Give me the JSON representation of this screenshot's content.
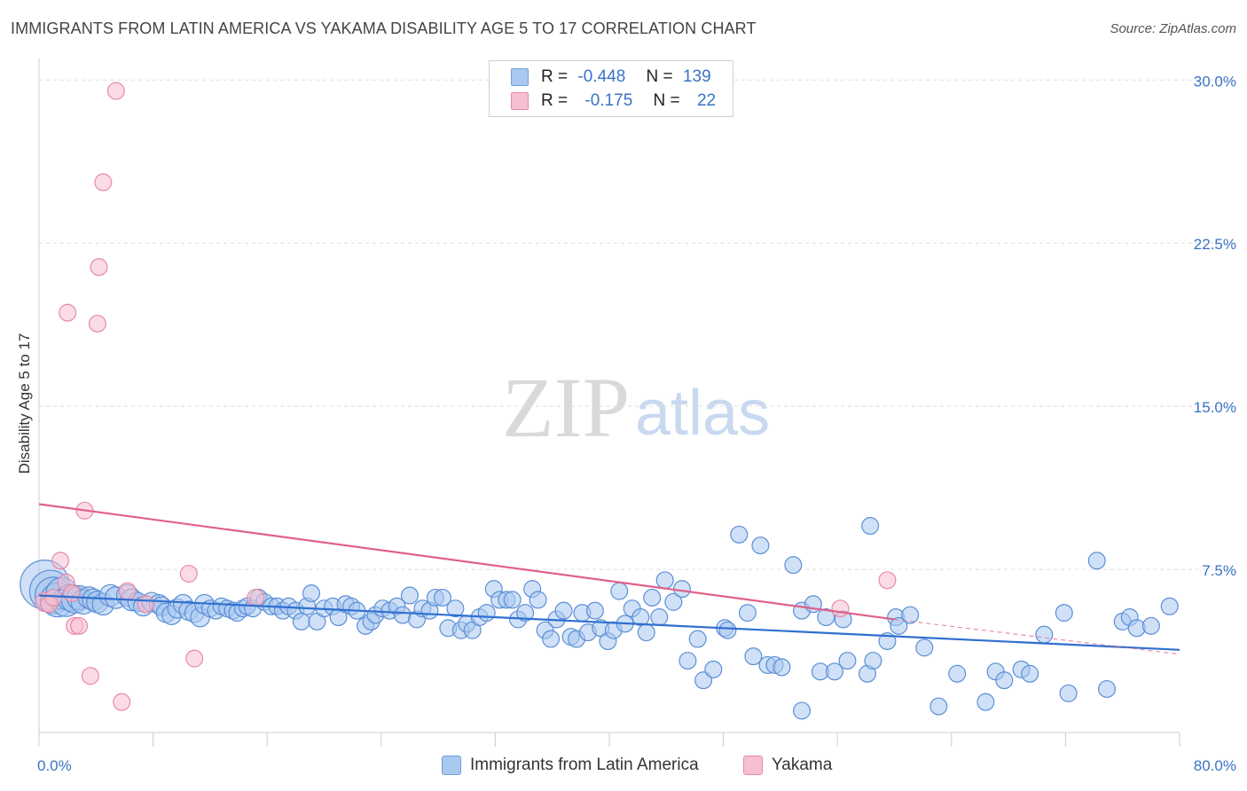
{
  "header": {
    "title": "IMMIGRANTS FROM LATIN AMERICA VS YAKAMA DISABILITY AGE 5 TO 17 CORRELATION CHART",
    "source": "Source: ZipAtlas.com"
  },
  "watermark": {
    "zip": "ZIP",
    "atlas": "atlas"
  },
  "stats": [
    {
      "r_label": "R =",
      "r_value": "-0.448",
      "n_label": "N =",
      "n_value": "139",
      "color": "#a9c8f0",
      "border": "#6f9fd8"
    },
    {
      "r_label": "R =",
      "r_value": "-0.175",
      "n_label": "N =",
      "n_value": "22",
      "color": "#f7c0d0",
      "border": "#e888a8"
    }
  ],
  "legend": [
    {
      "label": "Immigrants from Latin America",
      "color": "#a9c8f0",
      "border": "#6f9fd8"
    },
    {
      "label": "Yakama",
      "color": "#f7c0d0",
      "border": "#e888a8"
    }
  ],
  "chart_data": {
    "type": "scatter",
    "ylabel": "Disability Age 5 to 17",
    "xlim": [
      0,
      80
    ],
    "ylim": [
      0,
      30.5
    ],
    "x_tick_labels": [
      {
        "value": 0,
        "label": "0.0%"
      },
      {
        "value": 80,
        "label": "80.0%"
      }
    ],
    "y_tick_labels": [
      {
        "value": 7.5,
        "label": "7.5%"
      },
      {
        "value": 15.0,
        "label": "15.0%"
      },
      {
        "value": 22.5,
        "label": "22.5%"
      },
      {
        "value": 30.0,
        "label": "30.0%"
      }
    ],
    "grid": true,
    "series": [
      {
        "name": "Immigrants from Latin America",
        "color": "#a9c8f0",
        "stroke": "#5b8fd6",
        "trend": {
          "x": [
            0,
            80
          ],
          "y": [
            6.3,
            3.8
          ],
          "color": "#2f6fd0"
        },
        "points": [
          [
            0.4,
            6.8,
            1.9
          ],
          [
            0.8,
            6.5,
            1.6
          ],
          [
            1.0,
            6.3,
            1.4
          ],
          [
            1.3,
            6.1,
            1.3
          ],
          [
            1.6,
            6.4,
            1.2
          ],
          [
            1.9,
            6.0,
            1.1
          ],
          [
            2.2,
            6.2,
            1.0
          ],
          [
            2.5,
            6.1,
            1.0
          ],
          [
            2.8,
            6.2,
            0.9
          ],
          [
            3.1,
            6.0,
            0.9
          ],
          [
            3.5,
            6.2,
            0.8
          ],
          [
            3.8,
            6.1,
            0.8
          ],
          [
            4.1,
            6.0,
            0.8
          ],
          [
            4.5,
            5.9,
            0.8
          ],
          [
            5.0,
            6.3,
            0.8
          ],
          [
            5.4,
            6.2,
            0.8
          ],
          [
            6.2,
            6.3,
            0.8
          ],
          [
            6.5,
            6.1,
            0.8
          ],
          [
            6.9,
            6.0,
            0.7
          ],
          [
            7.3,
            5.8,
            0.7
          ],
          [
            7.9,
            6.0,
            0.7
          ],
          [
            8.4,
            5.9,
            0.7
          ],
          [
            8.6,
            5.8,
            0.7
          ],
          [
            8.9,
            5.5,
            0.7
          ],
          [
            9.3,
            5.4,
            0.7
          ],
          [
            9.7,
            5.7,
            0.7
          ],
          [
            10.1,
            5.9,
            0.7
          ],
          [
            10.5,
            5.6,
            0.7
          ],
          [
            10.9,
            5.5,
            0.7
          ],
          [
            11.3,
            5.3,
            0.7
          ],
          [
            11.6,
            5.9,
            0.7
          ],
          [
            12.0,
            5.7,
            0.6
          ],
          [
            12.4,
            5.6,
            0.6
          ],
          [
            12.8,
            5.8,
            0.6
          ],
          [
            13.2,
            5.7,
            0.6
          ],
          [
            13.6,
            5.6,
            0.6
          ],
          [
            13.9,
            5.5,
            0.6
          ],
          [
            14.3,
            5.7,
            0.6
          ],
          [
            14.6,
            5.8,
            0.6
          ],
          [
            15.0,
            5.7,
            0.6
          ],
          [
            15.4,
            6.2,
            0.6
          ],
          [
            15.8,
            6.0,
            0.6
          ],
          [
            16.3,
            5.8,
            0.6
          ],
          [
            16.7,
            5.8,
            0.6
          ],
          [
            17.1,
            5.6,
            0.6
          ],
          [
            17.5,
            5.8,
            0.6
          ],
          [
            18.0,
            5.6,
            0.6
          ],
          [
            18.4,
            5.1,
            0.6
          ],
          [
            18.8,
            5.8,
            0.6
          ],
          [
            19.1,
            6.4,
            0.6
          ],
          [
            19.5,
            5.1,
            0.6
          ],
          [
            20.0,
            5.7,
            0.6
          ],
          [
            20.6,
            5.8,
            0.6
          ],
          [
            21.0,
            5.3,
            0.6
          ],
          [
            21.5,
            5.9,
            0.6
          ],
          [
            21.9,
            5.8,
            0.6
          ],
          [
            22.3,
            5.6,
            0.6
          ],
          [
            22.9,
            4.9,
            0.6
          ],
          [
            23.3,
            5.1,
            0.6
          ],
          [
            23.6,
            5.4,
            0.6
          ],
          [
            24.1,
            5.7,
            0.6
          ],
          [
            24.6,
            5.6,
            0.6
          ],
          [
            25.1,
            5.8,
            0.6
          ],
          [
            25.5,
            5.4,
            0.6
          ],
          [
            26.0,
            6.3,
            0.6
          ],
          [
            26.5,
            5.2,
            0.6
          ],
          [
            26.9,
            5.7,
            0.6
          ],
          [
            27.4,
            5.6,
            0.6
          ],
          [
            27.8,
            6.2,
            0.6
          ],
          [
            28.3,
            6.2,
            0.6
          ],
          [
            28.7,
            4.8,
            0.6
          ],
          [
            29.2,
            5.7,
            0.6
          ],
          [
            29.6,
            4.7,
            0.6
          ],
          [
            30.0,
            5.0,
            0.6
          ],
          [
            30.4,
            4.7,
            0.6
          ],
          [
            30.9,
            5.3,
            0.6
          ],
          [
            31.4,
            5.5,
            0.6
          ],
          [
            31.9,
            6.6,
            0.6
          ],
          [
            32.3,
            6.1,
            0.6
          ],
          [
            32.8,
            6.1,
            0.6
          ],
          [
            33.2,
            6.1,
            0.6
          ],
          [
            33.6,
            5.2,
            0.6
          ],
          [
            34.1,
            5.5,
            0.6
          ],
          [
            34.6,
            6.6,
            0.6
          ],
          [
            35.0,
            6.1,
            0.6
          ],
          [
            35.5,
            4.7,
            0.6
          ],
          [
            35.9,
            4.3,
            0.6
          ],
          [
            36.3,
            5.2,
            0.6
          ],
          [
            36.8,
            5.6,
            0.6
          ],
          [
            37.3,
            4.4,
            0.6
          ],
          [
            37.7,
            4.3,
            0.6
          ],
          [
            38.1,
            5.5,
            0.6
          ],
          [
            38.5,
            4.6,
            0.6
          ],
          [
            39.0,
            5.6,
            0.6
          ],
          [
            39.4,
            4.8,
            0.6
          ],
          [
            39.9,
            4.2,
            0.6
          ],
          [
            40.3,
            4.7,
            0.6
          ],
          [
            40.7,
            6.5,
            0.6
          ],
          [
            41.1,
            5.0,
            0.6
          ],
          [
            41.6,
            5.7,
            0.6
          ],
          [
            42.2,
            5.3,
            0.6
          ],
          [
            42.6,
            4.6,
            0.6
          ],
          [
            43.0,
            6.2,
            0.6
          ],
          [
            43.5,
            5.3,
            0.6
          ],
          [
            43.9,
            7.0,
            0.6
          ],
          [
            44.5,
            6.0,
            0.6
          ],
          [
            45.1,
            6.6,
            0.6
          ],
          [
            45.5,
            3.3,
            0.6
          ],
          [
            46.2,
            4.3,
            0.6
          ],
          [
            46.6,
            2.4,
            0.6
          ],
          [
            47.3,
            2.9,
            0.6
          ],
          [
            48.1,
            4.8,
            0.6
          ],
          [
            48.3,
            4.7,
            0.6
          ],
          [
            49.1,
            9.1,
            0.6
          ],
          [
            49.7,
            5.5,
            0.6
          ],
          [
            50.1,
            3.5,
            0.6
          ],
          [
            50.6,
            8.6,
            0.6
          ],
          [
            51.1,
            3.1,
            0.6
          ],
          [
            51.6,
            3.1,
            0.6
          ],
          [
            52.1,
            3.0,
            0.6
          ],
          [
            52.9,
            7.7,
            0.6
          ],
          [
            53.5,
            5.6,
            0.6
          ],
          [
            54.3,
            5.9,
            0.6
          ],
          [
            54.8,
            2.8,
            0.6
          ],
          [
            55.2,
            5.3,
            0.6
          ],
          [
            55.8,
            2.8,
            0.6
          ],
          [
            56.4,
            5.2,
            0.6
          ],
          [
            56.7,
            3.3,
            0.6
          ],
          [
            58.1,
            2.7,
            0.6
          ],
          [
            58.3,
            9.5,
            0.6
          ],
          [
            58.5,
            3.3,
            0.6
          ],
          [
            59.5,
            4.2,
            0.6
          ],
          [
            60.1,
            5.3,
            0.6
          ],
          [
            60.3,
            4.9,
            0.6
          ],
          [
            61.1,
            5.4,
            0.6
          ],
          [
            62.1,
            3.9,
            0.6
          ],
          [
            63.1,
            1.2,
            0.6
          ],
          [
            64.4,
            2.7,
            0.6
          ],
          [
            66.4,
            1.4,
            0.6
          ],
          [
            67.1,
            2.8,
            0.6
          ],
          [
            67.7,
            2.4,
            0.6
          ],
          [
            68.9,
            2.9,
            0.6
          ],
          [
            69.5,
            2.7,
            0.6
          ],
          [
            70.5,
            4.5,
            0.6
          ],
          [
            71.9,
            5.5,
            0.6
          ],
          [
            72.2,
            1.8,
            0.6
          ],
          [
            74.2,
            7.9,
            0.6
          ],
          [
            74.9,
            2.0,
            0.6
          ],
          [
            76.0,
            5.1,
            0.6
          ],
          [
            76.5,
            5.3,
            0.6
          ],
          [
            77.0,
            4.8,
            0.6
          ],
          [
            78.0,
            4.9,
            0.6
          ],
          [
            79.3,
            5.8,
            0.6
          ],
          [
            53.5,
            1.0,
            0.6
          ]
        ]
      },
      {
        "name": "Yakama",
        "color": "#f7c0d0",
        "stroke": "#e888a8",
        "trend": {
          "x": [
            0,
            60
          ],
          "y": [
            10.5,
            5.2
          ],
          "color": "#e0608a",
          "dashed_to": [
            80,
            3.6
          ]
        },
        "points": [
          [
            0.4,
            6.0,
            0.7
          ],
          [
            0.7,
            5.9,
            0.6
          ],
          [
            1.0,
            6.2,
            0.6
          ],
          [
            1.5,
            7.9,
            0.6
          ],
          [
            1.9,
            6.9,
            0.6
          ],
          [
            2.0,
            19.3,
            0.6
          ],
          [
            2.3,
            6.4,
            0.6
          ],
          [
            2.5,
            4.9,
            0.6
          ],
          [
            2.8,
            4.9,
            0.6
          ],
          [
            3.2,
            10.2,
            0.6
          ],
          [
            3.6,
            2.6,
            0.6
          ],
          [
            4.2,
            21.4,
            0.6
          ],
          [
            4.1,
            18.8,
            0.6
          ],
          [
            4.5,
            25.3,
            0.6
          ],
          [
            5.4,
            29.5,
            0.6
          ],
          [
            5.8,
            1.4,
            0.6
          ],
          [
            6.2,
            6.5,
            0.6
          ],
          [
            7.5,
            5.9,
            0.6
          ],
          [
            10.5,
            7.3,
            0.6
          ],
          [
            10.9,
            3.4,
            0.6
          ],
          [
            15.2,
            6.2,
            0.6
          ],
          [
            56.2,
            5.7,
            0.6
          ],
          [
            59.5,
            7.0,
            0.6
          ]
        ]
      }
    ]
  }
}
